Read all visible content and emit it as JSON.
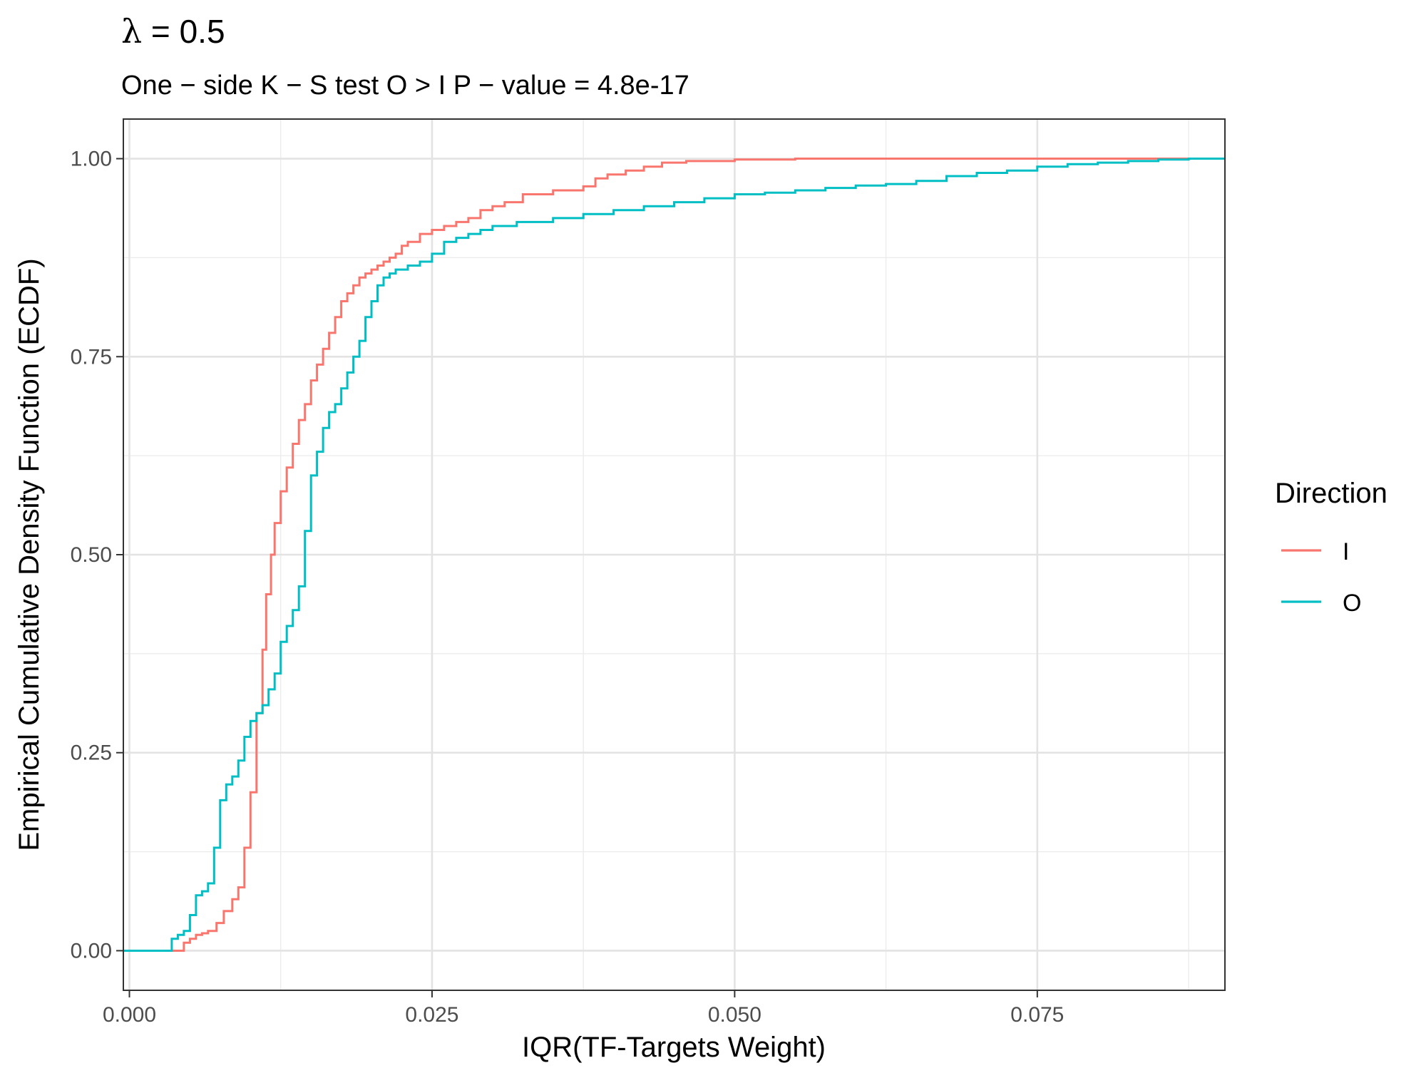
{
  "chart_data": {
    "type": "line",
    "step": true,
    "title": "λ = 0.5",
    "title_symbol": "λ",
    "title_rest": " = 0.5",
    "subtitle": "One − side K − S test O > I P − value = 4.8e-17",
    "xlabel": "IQR(TF-Targets Weight)",
    "ylabel": "Empirical Cumulative Density Function (ECDF)",
    "xlim": [
      -0.0005,
      0.0905
    ],
    "ylim": [
      -0.05,
      1.05
    ],
    "x_ticks": [
      0.0,
      0.025,
      0.05,
      0.075
    ],
    "x_tick_labels": [
      "0.000",
      "0.025",
      "0.050",
      "0.075"
    ],
    "y_ticks": [
      0.0,
      0.25,
      0.5,
      0.75,
      1.0
    ],
    "y_tick_labels": [
      "0.00",
      "0.25",
      "0.50",
      "0.75",
      "1.00"
    ],
    "x_minor_ticks": [
      0.0125,
      0.0375,
      0.0625,
      0.0875
    ],
    "y_minor_ticks": [
      0.125,
      0.375,
      0.625,
      0.875
    ],
    "grid": true,
    "legend": {
      "title": "Direction",
      "position": "right"
    },
    "series": [
      {
        "name": "I",
        "color": "#F8766D",
        "x": [
          -0.0005,
          0.0038,
          0.0045,
          0.005,
          0.0055,
          0.006,
          0.0065,
          0.0072,
          0.0078,
          0.0085,
          0.009,
          0.0095,
          0.01,
          0.0105,
          0.011,
          0.0113,
          0.0117,
          0.012,
          0.0125,
          0.013,
          0.0135,
          0.014,
          0.0145,
          0.015,
          0.0155,
          0.016,
          0.0165,
          0.017,
          0.0175,
          0.018,
          0.0185,
          0.019,
          0.0195,
          0.02,
          0.0205,
          0.021,
          0.0215,
          0.022,
          0.0225,
          0.023,
          0.024,
          0.025,
          0.026,
          0.027,
          0.028,
          0.029,
          0.03,
          0.031,
          0.0325,
          0.035,
          0.0375,
          0.0385,
          0.0395,
          0.041,
          0.0425,
          0.044,
          0.046,
          0.05,
          0.055,
          0.06,
          0.065,
          0.07,
          0.075,
          0.08,
          0.085,
          0.09,
          0.0905
        ],
        "y": [
          0.0,
          0.0,
          0.01,
          0.015,
          0.02,
          0.022,
          0.025,
          0.035,
          0.05,
          0.065,
          0.08,
          0.13,
          0.2,
          0.3,
          0.38,
          0.45,
          0.5,
          0.54,
          0.58,
          0.61,
          0.64,
          0.67,
          0.69,
          0.72,
          0.74,
          0.76,
          0.78,
          0.8,
          0.82,
          0.83,
          0.84,
          0.85,
          0.855,
          0.86,
          0.865,
          0.87,
          0.875,
          0.88,
          0.89,
          0.895,
          0.905,
          0.91,
          0.915,
          0.92,
          0.925,
          0.935,
          0.94,
          0.945,
          0.955,
          0.96,
          0.965,
          0.975,
          0.98,
          0.985,
          0.99,
          0.995,
          0.997,
          0.999,
          1.0,
          1.0,
          1.0,
          1.0,
          1.0,
          1.0,
          1.0,
          1.0,
          1.0
        ]
      },
      {
        "name": "O",
        "color": "#00BFC4",
        "x": [
          -0.0005,
          0.003,
          0.0035,
          0.004,
          0.0045,
          0.005,
          0.0055,
          0.006,
          0.0065,
          0.007,
          0.0075,
          0.008,
          0.0085,
          0.009,
          0.0095,
          0.01,
          0.0105,
          0.011,
          0.0115,
          0.012,
          0.0125,
          0.013,
          0.0135,
          0.014,
          0.0145,
          0.015,
          0.0155,
          0.016,
          0.0165,
          0.017,
          0.0175,
          0.018,
          0.0185,
          0.019,
          0.0195,
          0.02,
          0.0205,
          0.021,
          0.0215,
          0.022,
          0.023,
          0.024,
          0.025,
          0.026,
          0.027,
          0.028,
          0.029,
          0.03,
          0.032,
          0.035,
          0.0375,
          0.04,
          0.0425,
          0.045,
          0.0475,
          0.05,
          0.0525,
          0.055,
          0.0575,
          0.06,
          0.0625,
          0.065,
          0.0675,
          0.07,
          0.0725,
          0.075,
          0.0775,
          0.08,
          0.0825,
          0.085,
          0.0875,
          0.09,
          0.0905
        ],
        "y": [
          0.0,
          0.0,
          0.015,
          0.02,
          0.025,
          0.045,
          0.07,
          0.075,
          0.085,
          0.13,
          0.19,
          0.21,
          0.22,
          0.24,
          0.27,
          0.29,
          0.3,
          0.31,
          0.33,
          0.35,
          0.39,
          0.41,
          0.43,
          0.46,
          0.53,
          0.6,
          0.63,
          0.66,
          0.68,
          0.69,
          0.71,
          0.73,
          0.75,
          0.77,
          0.8,
          0.82,
          0.84,
          0.85,
          0.855,
          0.86,
          0.865,
          0.87,
          0.88,
          0.895,
          0.9,
          0.905,
          0.91,
          0.915,
          0.92,
          0.925,
          0.93,
          0.935,
          0.94,
          0.945,
          0.95,
          0.955,
          0.957,
          0.96,
          0.963,
          0.966,
          0.968,
          0.972,
          0.978,
          0.982,
          0.985,
          0.99,
          0.993,
          0.995,
          0.997,
          0.999,
          1.0,
          1.0,
          1.0
        ]
      }
    ]
  }
}
